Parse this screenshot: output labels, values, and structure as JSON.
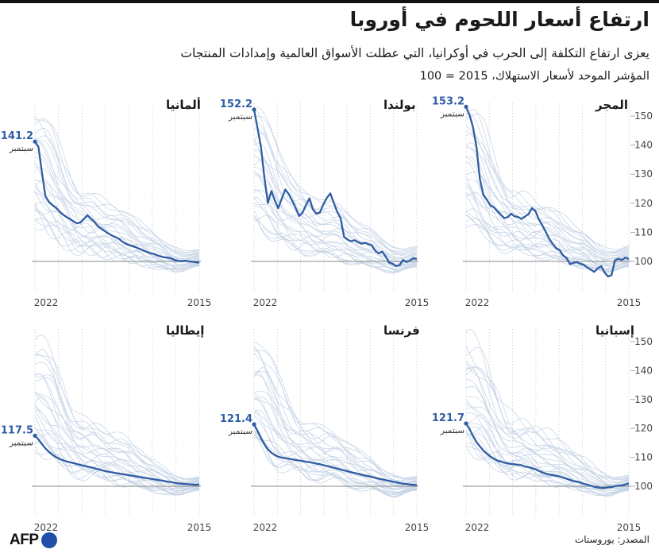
{
  "header": {
    "title": "ارتفاع أسعار اللحوم في أوروبا",
    "subtitle": "يعزى ارتفاع التكلفة إلى الحرب في أوكرانيا، التي عطلت الأسواق العالمية وإمدادات المنتجات",
    "index_note": "المؤشر الموحد لأسعار الاستهلاك، 2015 = 100"
  },
  "footer": {
    "source": "المصدر: يوروستات",
    "logo_text": "AFP"
  },
  "colors": {
    "highlight": "#2f5da3",
    "background_lines": "#c4d3e6",
    "baseline": "#8a8a8a",
    "grid": "#cfcfcf"
  },
  "chart_data": [
    {
      "type": "line",
      "title": "المجر",
      "x_labels": [
        "2022",
        "2015"
      ],
      "x_direction": "right-to-left",
      "ylim": [
        95,
        155
      ],
      "yticks": [
        100,
        110,
        120,
        130,
        140,
        150
      ],
      "grid": "dotted vertical",
      "last_value": "153.2",
      "last_label": "سبتمبر",
      "highlight": [
        100.8,
        101.3,
        100.5,
        100.9,
        100.4,
        95.3,
        94.8,
        96.2,
        98.4,
        97.6,
        96.4,
        97.2,
        97.9,
        98.8,
        99.2,
        99.7,
        99.5,
        99.1,
        101.2,
        102.1,
        103.9,
        104.6,
        106.1,
        107.8,
        110.2,
        112.4,
        114.5,
        117.4,
        118.3,
        116.2,
        115.4,
        114.6,
        115.3,
        115.5,
        116.4,
        115.2,
        114.9,
        116.1,
        117.3,
        118.6,
        119.3,
        121.2,
        122.9,
        128.3,
        139.4,
        146.2,
        150.3,
        153.2
      ],
      "background_top": [
        105.5,
        105.1,
        104.6,
        104.3,
        104,
        104.2,
        104.1,
        104.6,
        105.2,
        105.8,
        106.6,
        107.9,
        109.2,
        110.5,
        111.2,
        111.8,
        112.5,
        113.2,
        114.2,
        115.1,
        116.2,
        117.2,
        118.1,
        118.8,
        119.4,
        119.8,
        120.2,
        120.5,
        121.1,
        121.5,
        121.9,
        122.4,
        122.8,
        123.1,
        123.8,
        125.2,
        127.5,
        130.1,
        133.2,
        136.4,
        139.5,
        143.1,
        146.4,
        148.8,
        150.9,
        152.1,
        152.6,
        152.8
      ],
      "background_bottom": [
        98.2,
        98.1,
        97.8,
        97.4,
        97,
        96.5,
        96.3,
        96.2,
        96.6,
        96.9,
        97.3,
        97.6,
        97.8,
        98,
        98.2,
        98.5,
        98.8,
        99,
        99.4,
        99.8,
        100.2,
        100.5,
        100.9,
        101.2,
        101.5,
        101.7,
        101.9,
        102.2,
        102.4,
        102.7,
        103.1,
        103.4,
        103.6,
        103.8,
        104,
        104.2,
        104.6,
        105.1,
        105.8,
        106.4,
        107.2,
        108.1,
        109.2,
        110.4,
        111.5,
        112.6,
        113.5,
        114.2
      ]
    },
    {
      "type": "line",
      "title": "بولندا",
      "x_labels": [
        "2022",
        "2015"
      ],
      "x_direction": "right-to-left",
      "ylim": [
        95,
        155
      ],
      "yticks": [
        100,
        110,
        120,
        130,
        140,
        150
      ],
      "grid": "dotted vertical",
      "last_value": "152.2",
      "last_label": "سبتمبر",
      "highlight": [
        100.8,
        101.1,
        100.3,
        99.8,
        100.5,
        98.7,
        98.4,
        99.2,
        99.6,
        101.7,
        103.4,
        102.8,
        103.6,
        105.5,
        105.9,
        106.4,
        106.1,
        106.6,
        107.3,
        106.9,
        107.5,
        108.4,
        114.8,
        117.1,
        120.2,
        123.4,
        121.8,
        119.6,
        116.8,
        116.4,
        117.9,
        121.7,
        119.4,
        116.8,
        115.6,
        118.4,
        120.9,
        123.2,
        124.7,
        121.6,
        118.3,
        120.9,
        124.2,
        120.1,
        128.6,
        139.3,
        145.8,
        152.2
      ],
      "background_top": [
        105.2,
        105,
        104.8,
        104.5,
        104.3,
        104.6,
        104.9,
        105.3,
        105.9,
        106.7,
        107.6,
        108.7,
        109.8,
        110.9,
        111.7,
        112.4,
        113.1,
        113.9,
        114.9,
        115.8,
        116.9,
        117.8,
        118.7,
        119.4,
        120.1,
        120.6,
        121,
        121.4,
        121.9,
        122.4,
        122.9,
        123.4,
        123.7,
        124.2,
        125,
        126.3,
        128.3,
        130.8,
        133.7,
        136.8,
        139.9,
        143.2,
        146.2,
        148.5,
        150.3,
        151.4,
        151.9,
        152
      ],
      "background_bottom": [
        98.1,
        98,
        97.7,
        97.3,
        96.9,
        96.4,
        96.2,
        96.1,
        96.5,
        96.8,
        97.2,
        97.5,
        97.7,
        97.9,
        98.1,
        98.4,
        98.7,
        98.9,
        99.3,
        99.7,
        100.1,
        100.4,
        100.8,
        101.1,
        101.4,
        101.6,
        101.8,
        102.1,
        102.3,
        102.6,
        103,
        103.3,
        103.5,
        103.7,
        103.9,
        104.1,
        104.5,
        105,
        105.7,
        106.3,
        107.1,
        108,
        109.1,
        110.3,
        111.4,
        112.5,
        113.4,
        114.1
      ]
    },
    {
      "type": "line",
      "title": "ألمانيا",
      "x_labels": [
        "2022",
        "2015"
      ],
      "x_direction": "right-to-left",
      "ylim": [
        95,
        155
      ],
      "yticks": [
        100,
        110,
        120,
        130,
        140,
        150
      ],
      "grid": "dotted vertical",
      "last_value": "141.2",
      "last_label": "سبتمبر",
      "highlight": [
        99.6,
        99.7,
        99.9,
        100,
        100.2,
        100.1,
        100.2,
        100.5,
        101,
        101.3,
        101.4,
        101.7,
        102.1,
        102.6,
        102.8,
        103.3,
        103.8,
        104.3,
        104.8,
        105.2,
        105.6,
        106.1,
        106.8,
        107.8,
        108.4,
        108.9,
        109.6,
        110.4,
        111.2,
        112.1,
        113.6,
        114.7,
        115.9,
        114.6,
        113.4,
        113.1,
        113.8,
        114.6,
        115.3,
        116.1,
        117.2,
        118.5,
        119.4,
        120.5,
        122.4,
        130.6,
        139.4,
        141.2
      ],
      "background_top": [
        104.2,
        104,
        103.8,
        103.7,
        103.6,
        103.9,
        104.2,
        104.7,
        105.3,
        106.1,
        107,
        108,
        109.1,
        110.2,
        111,
        111.7,
        112.4,
        113.2,
        114.2,
        115.1,
        116.2,
        117.1,
        118,
        118.7,
        119.4,
        119.9,
        120.3,
        120.7,
        121.2,
        121.7,
        122.2,
        122.7,
        123,
        123.5,
        124.3,
        125.6,
        127.6,
        130.1,
        133,
        136.1,
        139.2,
        142.5,
        145.5,
        147.8,
        149.6,
        150.7,
        151.2,
        151.3
      ],
      "background_bottom": [
        98.4,
        98.3,
        98,
        97.6,
        97.2,
        96.7,
        96.5,
        96.4,
        96.8,
        97.1,
        97.5,
        97.8,
        98,
        98.2,
        98.4,
        98.7,
        99,
        99.2,
        99.6,
        100,
        100.4,
        100.7,
        101.1,
        101.4,
        101.7,
        101.9,
        102.1,
        102.4,
        102.6,
        102.9,
        103.3,
        103.6,
        103.8,
        104,
        104.2,
        104.4,
        104.8,
        105.3,
        106,
        106.6,
        107.4,
        108.3,
        109.4,
        110.6,
        111.7,
        112.8,
        113.7,
        114.4
      ]
    },
    {
      "type": "line",
      "title": "إسبانيا",
      "x_labels": [
        "2022",
        "2015"
      ],
      "x_direction": "right-to-left",
      "ylim": [
        95,
        155
      ],
      "yticks": [
        100,
        110,
        120,
        130,
        140,
        150
      ],
      "grid": "dotted vertical",
      "last_value": "121.7",
      "last_label": "سبتمبر",
      "highlight": [
        101,
        100.6,
        100.3,
        100.2,
        100,
        99.7,
        99.6,
        99.4,
        99.4,
        99.6,
        99.8,
        100.2,
        100.6,
        100.8,
        101.3,
        101.6,
        101.8,
        102.2,
        102.6,
        103,
        103.4,
        103.6,
        103.9,
        104,
        104.4,
        104.8,
        105.3,
        105.9,
        106.3,
        106.6,
        106.8,
        107.3,
        107.4,
        107.6,
        107.7,
        107.9,
        108.2,
        108.6,
        108.9,
        109.6,
        110.3,
        111.3,
        112.4,
        113.8,
        115.3,
        117.4,
        119.8,
        121.7
      ],
      "background_top": [
        103.8,
        103.6,
        103.4,
        103.3,
        103.2,
        103.5,
        103.8,
        104.3,
        104.9,
        105.7,
        106.6,
        107.6,
        108.7,
        109.8,
        110.6,
        111.3,
        112,
        112.8,
        113.8,
        114.7,
        115.8,
        116.7,
        117.6,
        118.3,
        119,
        119.5,
        119.9,
        120.3,
        120.8,
        121.3,
        121.8,
        122.3,
        122.6,
        123.1,
        123.9,
        125.2,
        127.2,
        129.7,
        132.6,
        135.7,
        138.8,
        142.1,
        145.1,
        147.4,
        149.2,
        150.3,
        150.8,
        150.9
      ],
      "background_bottom": [
        98.5,
        98.4,
        98.1,
        97.7,
        97.3,
        96.8,
        96.6,
        96.5,
        96.9,
        97.2,
        97.6,
        97.9,
        98.1,
        98.3,
        98.5,
        98.8,
        99.1,
        99.3,
        99.7,
        100.1,
        100.5,
        100.8,
        101.2,
        101.5,
        101.8,
        102,
        102.2,
        102.5,
        102.7,
        103,
        103.4,
        103.7,
        103.9,
        104.1,
        104.3,
        104.5,
        104.9,
        105.4,
        106.1,
        106.7,
        107.5,
        108.4,
        109.5,
        110.7,
        111.8,
        112.9,
        113.8,
        114.5
      ]
    },
    {
      "type": "line",
      "title": "فرنسا",
      "x_labels": [
        "2022",
        "2015"
      ],
      "x_direction": "right-to-left",
      "ylim": [
        95,
        155
      ],
      "yticks": [
        100,
        110,
        120,
        130,
        140,
        150
      ],
      "grid": "dotted vertical",
      "last_value": "121.4",
      "last_label": "سبتمبر",
      "highlight": [
        100.4,
        100.5,
        100.6,
        100.8,
        100.9,
        101.1,
        101.4,
        101.6,
        101.9,
        102.1,
        102.4,
        102.6,
        102.9,
        103.2,
        103.5,
        103.7,
        104,
        104.3,
        104.6,
        104.9,
        105.2,
        105.5,
        105.8,
        106.1,
        106.4,
        106.7,
        107,
        107.3,
        107.6,
        107.8,
        108.1,
        108.3,
        108.5,
        108.7,
        108.9,
        109.1,
        109.3,
        109.5,
        109.7,
        109.9,
        110.2,
        110.8,
        111.6,
        112.8,
        114.5,
        116.6,
        119.1,
        121.4
      ],
      "background_top": [
        103.5,
        103.3,
        103.1,
        103,
        102.9,
        103.2,
        103.5,
        104,
        104.6,
        105.4,
        106.3,
        107.3,
        108.4,
        109.5,
        110.3,
        111,
        111.7,
        112.5,
        113.5,
        114.4,
        115.5,
        116.4,
        117.3,
        118,
        118.7,
        119.2,
        119.6,
        120,
        120.5,
        121,
        121.5,
        122,
        122.3,
        122.8,
        123.6,
        124.9,
        126.9,
        129.4,
        132.3,
        135.4,
        138.5,
        141.8,
        144.8,
        147.1,
        148.9,
        150,
        150.5,
        150.6
      ],
      "background_bottom": [
        98.6,
        98.5,
        98.2,
        97.8,
        97.4,
        96.9,
        96.7,
        96.6,
        97,
        97.3,
        97.7,
        98,
        98.2,
        98.4,
        98.6,
        98.9,
        99.2,
        99.4,
        99.8,
        100.2,
        100.6,
        100.9,
        101.3,
        101.6,
        101.9,
        102.1,
        102.3,
        102.6,
        102.8,
        103.1,
        103.5,
        103.8,
        104,
        104.2,
        104.4,
        104.6,
        105,
        105.5,
        106.2,
        106.8,
        107.6,
        108.5,
        109.6,
        110.8,
        111.9,
        113,
        113.9,
        114.6
      ]
    },
    {
      "type": "line",
      "title": "إيطاليا",
      "x_labels": [
        "2022",
        "2015"
      ],
      "x_direction": "right-to-left",
      "ylim": [
        95,
        155
      ],
      "yticks": [
        100,
        110,
        120,
        130,
        140,
        150
      ],
      "grid": "dotted vertical",
      "last_value": "117.5",
      "last_label": "سبتمبر",
      "highlight": [
        100.6,
        100.5,
        100.6,
        100.7,
        100.8,
        100.9,
        101,
        101.2,
        101.4,
        101.6,
        101.8,
        102,
        102.2,
        102.4,
        102.6,
        102.8,
        103,
        103.2,
        103.4,
        103.6,
        103.8,
        104,
        104.2,
        104.4,
        104.6,
        104.8,
        105,
        105.3,
        105.6,
        105.9,
        106.2,
        106.5,
        106.8,
        107.1,
        107.4,
        107.7,
        108,
        108.3,
        108.6,
        109,
        109.5,
        110.1,
        110.9,
        111.9,
        113.1,
        114.6,
        116.2,
        117.5
      ],
      "background_top": [
        103.3,
        103.1,
        102.9,
        102.8,
        102.7,
        103,
        103.3,
        103.8,
        104.4,
        105.2,
        106.1,
        107.1,
        108.2,
        109.3,
        110.1,
        110.8,
        111.5,
        112.3,
        113.3,
        114.2,
        115.3,
        116.2,
        117.1,
        117.8,
        118.5,
        119,
        119.4,
        119.8,
        120.3,
        120.8,
        121.3,
        121.8,
        122.1,
        122.6,
        123.4,
        124.7,
        126.7,
        129.2,
        132.1,
        135.2,
        138.3,
        141.6,
        144.6,
        146.9,
        148.7,
        149.8,
        150.3,
        150.4
      ],
      "background_bottom": [
        98.7,
        98.6,
        98.3,
        97.9,
        97.5,
        97,
        96.8,
        96.7,
        97.1,
        97.4,
        97.8,
        98.1,
        98.3,
        98.5,
        98.7,
        99,
        99.3,
        99.5,
        99.9,
        100.3,
        100.7,
        101,
        101.4,
        101.7,
        102,
        102.2,
        102.4,
        102.7,
        102.9,
        103.2,
        103.6,
        103.9,
        104.1,
        104.3,
        104.5,
        104.7,
        105.1,
        105.6,
        106.3,
        106.9,
        107.7,
        108.6,
        109.7,
        110.9,
        112,
        113.1,
        114,
        114.7
      ]
    }
  ]
}
